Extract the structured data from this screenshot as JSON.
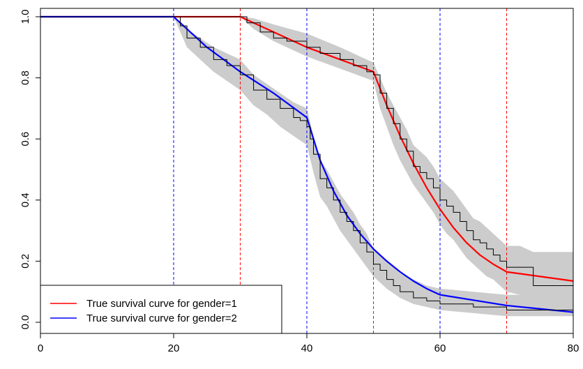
{
  "chart_data": {
    "type": "line",
    "title": "",
    "xlabel": "",
    "ylabel": "",
    "xlim": [
      0,
      80
    ],
    "ylim": [
      0,
      1
    ],
    "x_ticks": [
      "0",
      "20",
      "40",
      "60",
      "80"
    ],
    "y_ticks": [
      "0.0",
      "0.2",
      "0.4",
      "0.6",
      "0.8",
      "1.0"
    ],
    "legend_position": "bottom-left",
    "vlines": [
      {
        "x": 20,
        "color": "#0000ff"
      },
      {
        "x": 30,
        "color": "#ff0000"
      },
      {
        "x": 40,
        "color": "#0000ff"
      },
      {
        "x": 50,
        "color": "#ff0000"
      },
      {
        "x": 60,
        "color": "#0000ff"
      },
      {
        "x": 70,
        "color": "#ff0000"
      }
    ],
    "series": [
      {
        "name": "True survival curve for gender=1",
        "color": "#ff0000",
        "x": [
          0,
          30,
          32,
          35,
          40,
          45,
          50,
          52,
          54,
          56,
          58,
          60,
          62,
          64,
          66,
          68,
          70,
          80
        ],
        "y": [
          1.0,
          1.0,
          0.98,
          0.95,
          0.9,
          0.86,
          0.82,
          0.71,
          0.61,
          0.52,
          0.44,
          0.37,
          0.31,
          0.26,
          0.22,
          0.19,
          0.165,
          0.135
        ]
      },
      {
        "name": "True survival curve for gender=2",
        "color": "#0000ff",
        "x": [
          0,
          20,
          25,
          30,
          35,
          40,
          42,
          44,
          46,
          48,
          50,
          52,
          54,
          56,
          58,
          60,
          70,
          80
        ],
        "y": [
          1.0,
          1.0,
          0.9,
          0.82,
          0.75,
          0.67,
          0.53,
          0.43,
          0.35,
          0.29,
          0.24,
          0.2,
          0.165,
          0.135,
          0.11,
          0.09,
          0.055,
          0.033
        ]
      },
      {
        "name": "",
        "color": "#000000",
        "step": true,
        "x": [
          0,
          30,
          31,
          33,
          35,
          37,
          40,
          42,
          45,
          47,
          49,
          50,
          51,
          52,
          53,
          54,
          55,
          56,
          57,
          58,
          59,
          60,
          61,
          62,
          63,
          64,
          65,
          66,
          67,
          68,
          69,
          70,
          72,
          74,
          80
        ],
        "y": [
          1.0,
          1.0,
          0.98,
          0.95,
          0.93,
          0.92,
          0.9,
          0.88,
          0.86,
          0.84,
          0.82,
          0.81,
          0.75,
          0.7,
          0.65,
          0.6,
          0.56,
          0.51,
          0.49,
          0.47,
          0.44,
          0.4,
          0.38,
          0.36,
          0.33,
          0.3,
          0.27,
          0.26,
          0.24,
          0.22,
          0.2,
          0.18,
          0.18,
          0.12,
          0.12
        ]
      },
      {
        "name": "",
        "color": "#000000",
        "step": true,
        "x": [
          0,
          20,
          21,
          22,
          24,
          26,
          28,
          30,
          32,
          34,
          36,
          38,
          39,
          40,
          40.5,
          41,
          42,
          43,
          44,
          45,
          46,
          47,
          48,
          49,
          50,
          51,
          52,
          53,
          54,
          56,
          58,
          60,
          65,
          70,
          80
        ],
        "y": [
          1.0,
          1.0,
          0.97,
          0.93,
          0.9,
          0.86,
          0.84,
          0.81,
          0.76,
          0.73,
          0.7,
          0.67,
          0.66,
          0.64,
          0.6,
          0.55,
          0.47,
          0.44,
          0.4,
          0.36,
          0.33,
          0.3,
          0.26,
          0.23,
          0.19,
          0.17,
          0.14,
          0.12,
          0.1,
          0.08,
          0.07,
          0.06,
          0.05,
          0.04,
          0.04
        ]
      }
    ],
    "bands": [
      {
        "color": "#cccccc",
        "x": [
          30,
          32,
          35,
          40,
          45,
          50,
          51,
          52,
          53,
          54,
          55,
          56,
          57,
          58,
          59,
          60,
          61,
          62,
          63,
          64,
          65,
          66,
          67,
          68,
          69,
          70,
          72,
          74,
          80
        ],
        "lower": [
          1.0,
          0.96,
          0.92,
          0.87,
          0.83,
          0.79,
          0.7,
          0.64,
          0.58,
          0.53,
          0.49,
          0.45,
          0.42,
          0.39,
          0.36,
          0.32,
          0.29,
          0.27,
          0.24,
          0.21,
          0.19,
          0.17,
          0.15,
          0.14,
          0.12,
          0.1,
          0.09,
          0.07,
          0.07
        ],
        "upper": [
          1.0,
          0.995,
          0.975,
          0.945,
          0.9,
          0.85,
          0.8,
          0.75,
          0.71,
          0.67,
          0.63,
          0.58,
          0.56,
          0.54,
          0.51,
          0.47,
          0.45,
          0.43,
          0.4,
          0.37,
          0.34,
          0.33,
          0.31,
          0.29,
          0.27,
          0.25,
          0.25,
          0.23,
          0.23
        ]
      },
      {
        "color": "#cccccc",
        "x": [
          20,
          22,
          24,
          26,
          28,
          30,
          32,
          34,
          36,
          38,
          40,
          41,
          42,
          43,
          44,
          45,
          46,
          47,
          48,
          49,
          50,
          52,
          54,
          56,
          58,
          60,
          65,
          70,
          80
        ],
        "lower": [
          1.0,
          0.9,
          0.86,
          0.82,
          0.79,
          0.76,
          0.71,
          0.68,
          0.64,
          0.61,
          0.58,
          0.49,
          0.41,
          0.38,
          0.34,
          0.3,
          0.27,
          0.24,
          0.21,
          0.18,
          0.15,
          0.11,
          0.08,
          0.06,
          0.05,
          0.04,
          0.03,
          0.02,
          0.02
        ],
        "upper": [
          1.0,
          0.96,
          0.93,
          0.9,
          0.88,
          0.86,
          0.81,
          0.78,
          0.75,
          0.72,
          0.7,
          0.61,
          0.53,
          0.5,
          0.46,
          0.42,
          0.39,
          0.36,
          0.32,
          0.29,
          0.24,
          0.2,
          0.16,
          0.14,
          0.12,
          0.11,
          0.1,
          0.09,
          0.09
        ]
      }
    ]
  }
}
